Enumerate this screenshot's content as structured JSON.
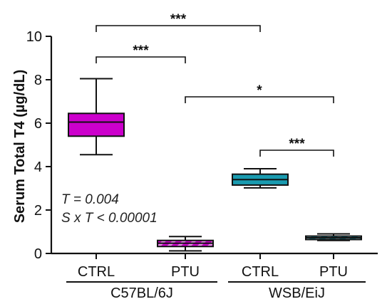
{
  "chart_data": {
    "type": "boxplot",
    "ylabel": "Serum Total T4 (µg/dL)",
    "ylim": [
      0,
      10
    ],
    "yticks": [
      "0",
      "2",
      "4",
      "6",
      "8",
      "10"
    ],
    "grid": false,
    "groups": [
      {
        "name": "C57BL/6J",
        "categories": [
          "CTRL",
          "PTU"
        ]
      },
      {
        "name": "WSB/EiJ",
        "categories": [
          "CTRL",
          "PTU"
        ]
      }
    ],
    "boxes": [
      {
        "group": "C57BL/6J",
        "category": "CTRL",
        "min": 4.55,
        "q1": 5.4,
        "median": 6.05,
        "q3": 6.45,
        "max": 8.05,
        "color": "#cc00cc",
        "pattern": "solid"
      },
      {
        "group": "C57BL/6J",
        "category": "PTU",
        "min": 0.12,
        "q1": 0.32,
        "median": 0.47,
        "q3": 0.6,
        "max": 0.78,
        "color": "#cc00cc",
        "pattern": "hatched"
      },
      {
        "group": "WSB/EiJ",
        "category": "CTRL",
        "min": 3.02,
        "q1": 3.15,
        "median": 3.4,
        "q3": 3.65,
        "max": 3.9,
        "color": "#1a9bb0",
        "pattern": "solid"
      },
      {
        "group": "WSB/EiJ",
        "category": "PTU",
        "min": 0.6,
        "q1": 0.64,
        "median": 0.72,
        "q3": 0.8,
        "max": 0.9,
        "color": "#1a9bb0",
        "pattern": "hatched"
      }
    ],
    "significance": [
      {
        "from": 0,
        "to": 2,
        "label": "***"
      },
      {
        "from": 0,
        "to": 1,
        "label": "***"
      },
      {
        "from": 1,
        "to": 3,
        "label": "*"
      },
      {
        "from": 2,
        "to": 3,
        "label": "***"
      }
    ],
    "annotations": [
      "T = 0.004",
      "S x T < 0.00001"
    ]
  }
}
